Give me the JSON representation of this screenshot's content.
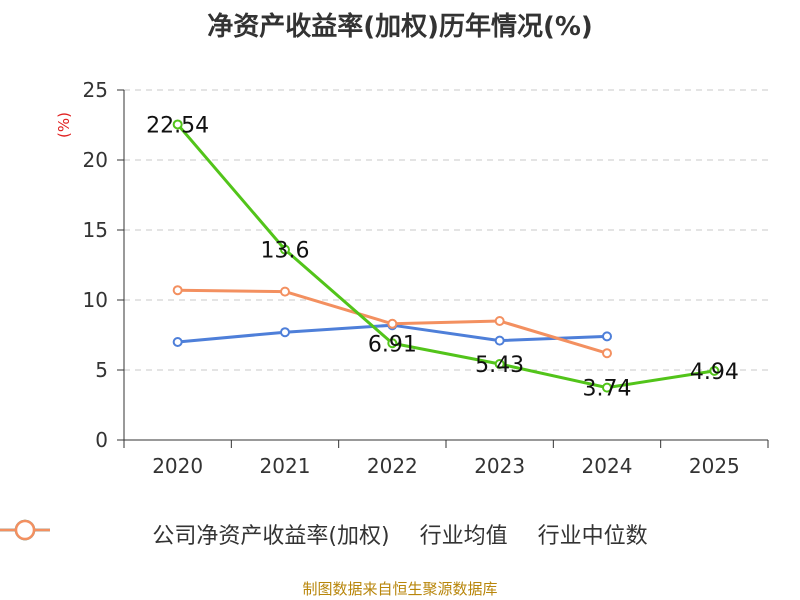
{
  "title": "净资产收益率(加权)历年情况(%)",
  "source": "制图数据来自恒生聚源数据库",
  "chart_data": {
    "type": "line",
    "title": "净资产收益率(加权)历年情况(%)",
    "ylabel": "(%)",
    "xlabel": "",
    "ylim": [
      0,
      25
    ],
    "yticks": [
      0,
      5,
      10,
      15,
      20,
      25
    ],
    "categories": [
      "2020",
      "2021",
      "2022",
      "2023",
      "2024",
      "2025"
    ],
    "grid": true,
    "legend_position": "bottom",
    "series": [
      {
        "name": "公司净资产收益率(加权)",
        "color": "#52c41a",
        "values": [
          22.54,
          13.6,
          6.91,
          5.43,
          3.74,
          4.94
        ],
        "labels": [
          "22.54",
          "13.6",
          "6.91",
          "5.43",
          "3.74",
          "4.94"
        ]
      },
      {
        "name": "行业均值",
        "color": "#4e7fd9",
        "values": [
          7.0,
          7.7,
          8.2,
          7.1,
          7.4,
          null
        ]
      },
      {
        "name": "行业中位数",
        "color": "#f39060",
        "values": [
          10.7,
          10.6,
          8.3,
          8.5,
          6.2,
          null
        ]
      }
    ]
  }
}
